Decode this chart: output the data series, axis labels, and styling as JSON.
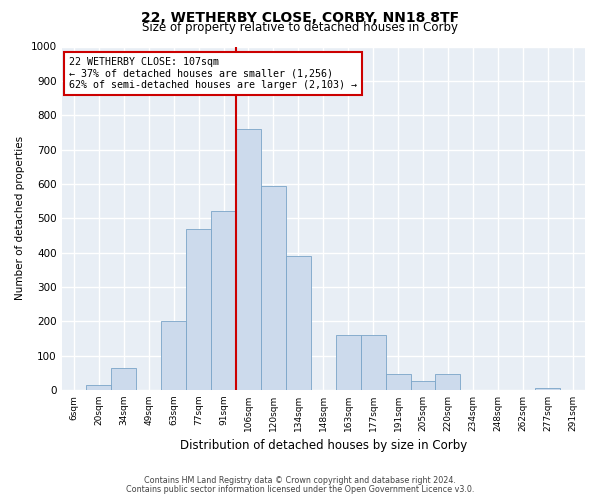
{
  "title": "22, WETHERBY CLOSE, CORBY, NN18 8TF",
  "subtitle": "Size of property relative to detached houses in Corby",
  "xlabel": "Distribution of detached houses by size in Corby",
  "ylabel": "Number of detached properties",
  "bar_labels": [
    "6sqm",
    "20sqm",
    "34sqm",
    "49sqm",
    "63sqm",
    "77sqm",
    "91sqm",
    "106sqm",
    "120sqm",
    "134sqm",
    "148sqm",
    "163sqm",
    "177sqm",
    "191sqm",
    "205sqm",
    "220sqm",
    "234sqm",
    "248sqm",
    "262sqm",
    "277sqm",
    "291sqm"
  ],
  "bar_values": [
    0,
    15,
    65,
    0,
    200,
    470,
    520,
    760,
    595,
    390,
    0,
    160,
    160,
    45,
    25,
    45,
    0,
    0,
    0,
    5,
    0
  ],
  "bar_color": "#ccdaec",
  "bar_edgecolor": "#7aa4c8",
  "vline_index": 7,
  "vline_color": "#cc0000",
  "annotation_title": "22 WETHERBY CLOSE: 107sqm",
  "annotation_line1": "← 37% of detached houses are smaller (1,256)",
  "annotation_line2": "62% of semi-detached houses are larger (2,103) →",
  "annotation_box_edgecolor": "#cc0000",
  "ylim": [
    0,
    1000
  ],
  "yticks": [
    0,
    100,
    200,
    300,
    400,
    500,
    600,
    700,
    800,
    900,
    1000
  ],
  "footnote1": "Contains HM Land Registry data © Crown copyright and database right 2024.",
  "footnote2": "Contains public sector information licensed under the Open Government Licence v3.0.",
  "bg_color": "#e8eef5",
  "title_fontsize": 10,
  "subtitle_fontsize": 8.5
}
